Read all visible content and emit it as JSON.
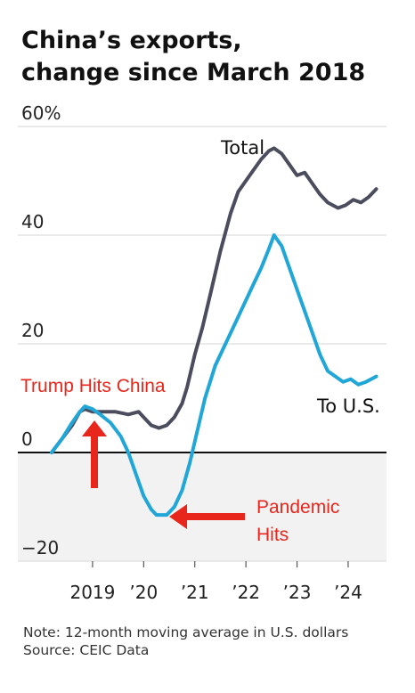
{
  "title": {
    "line1": "China’s exports,",
    "line2": "change since March 2018"
  },
  "chart_data": {
    "type": "line",
    "ylim": [
      -20,
      60
    ],
    "xlim": [
      2018.2,
      2024.75
    ],
    "y_ticks": [
      {
        "value": 60,
        "label": "60%"
      },
      {
        "value": 40,
        "label": "40"
      },
      {
        "value": 20,
        "label": "20"
      },
      {
        "value": 0,
        "label": "0"
      },
      {
        "value": -20,
        "label": "−20"
      }
    ],
    "x_ticks": [
      {
        "value": 2019,
        "label": "2019"
      },
      {
        "value": 2020,
        "label": "’20"
      },
      {
        "value": 2021,
        "label": "’21"
      },
      {
        "value": 2022,
        "label": "’22"
      },
      {
        "value": 2023,
        "label": "’23"
      },
      {
        "value": 2024,
        "label": "’24"
      }
    ],
    "grid": true,
    "series": [
      {
        "name": "Total",
        "color": "#4b4d5e",
        "points": [
          [
            2018.2,
            0
          ],
          [
            2018.4,
            2.5
          ],
          [
            2018.6,
            5
          ],
          [
            2018.75,
            7.5
          ],
          [
            2018.85,
            8
          ],
          [
            2019.0,
            7.5
          ],
          [
            2019.2,
            7.5
          ],
          [
            2019.45,
            7.5
          ],
          [
            2019.7,
            7
          ],
          [
            2019.9,
            7.5
          ],
          [
            2020.0,
            6.5
          ],
          [
            2020.15,
            5
          ],
          [
            2020.3,
            4.5
          ],
          [
            2020.45,
            5
          ],
          [
            2020.6,
            6.5
          ],
          [
            2020.75,
            9
          ],
          [
            2020.85,
            12
          ],
          [
            2021.0,
            18
          ],
          [
            2021.15,
            23
          ],
          [
            2021.3,
            29
          ],
          [
            2021.5,
            37
          ],
          [
            2021.7,
            44
          ],
          [
            2021.85,
            48
          ],
          [
            2022.0,
            50
          ],
          [
            2022.15,
            52
          ],
          [
            2022.3,
            54
          ],
          [
            2022.45,
            55.5
          ],
          [
            2022.55,
            56
          ],
          [
            2022.7,
            55
          ],
          [
            2022.85,
            53
          ],
          [
            2023.0,
            51
          ],
          [
            2023.15,
            51.5
          ],
          [
            2023.3,
            49.5
          ],
          [
            2023.45,
            47.5
          ],
          [
            2023.6,
            46
          ],
          [
            2023.8,
            45
          ],
          [
            2023.95,
            45.5
          ],
          [
            2024.1,
            46.5
          ],
          [
            2024.25,
            46
          ],
          [
            2024.4,
            47
          ],
          [
            2024.55,
            48.5
          ]
        ]
      },
      {
        "name": "To U.S.",
        "color": "#21a6d8",
        "points": [
          [
            2018.2,
            0
          ],
          [
            2018.4,
            2.5
          ],
          [
            2018.6,
            5.5
          ],
          [
            2018.75,
            7.5
          ],
          [
            2018.85,
            8.5
          ],
          [
            2019.0,
            8
          ],
          [
            2019.15,
            7
          ],
          [
            2019.35,
            5.5
          ],
          [
            2019.55,
            3
          ],
          [
            2019.7,
            0
          ],
          [
            2019.85,
            -4
          ],
          [
            2020.0,
            -8
          ],
          [
            2020.15,
            -10.5
          ],
          [
            2020.25,
            -11.5
          ],
          [
            2020.45,
            -11.5
          ],
          [
            2020.6,
            -10
          ],
          [
            2020.75,
            -7
          ],
          [
            2020.9,
            -2
          ],
          [
            2021.05,
            4
          ],
          [
            2021.2,
            10
          ],
          [
            2021.4,
            16
          ],
          [
            2021.6,
            20
          ],
          [
            2021.8,
            24
          ],
          [
            2022.0,
            28
          ],
          [
            2022.15,
            31
          ],
          [
            2022.3,
            34
          ],
          [
            2022.45,
            37.5
          ],
          [
            2022.55,
            40
          ],
          [
            2022.7,
            38
          ],
          [
            2022.85,
            34
          ],
          [
            2023.0,
            30
          ],
          [
            2023.15,
            26
          ],
          [
            2023.3,
            22
          ],
          [
            2023.45,
            18
          ],
          [
            2023.6,
            15
          ],
          [
            2023.75,
            14
          ],
          [
            2023.9,
            13
          ],
          [
            2024.05,
            13.5
          ],
          [
            2024.2,
            12.5
          ],
          [
            2024.35,
            13
          ],
          [
            2024.55,
            14
          ]
        ]
      }
    ],
    "annotations": [
      {
        "text": "Trump Hits China",
        "target": [
          2018.85,
          8.5
        ],
        "arrow": "up"
      },
      {
        "text": "Pandemic",
        "text2": "Hits",
        "target": [
          2020.45,
          -11.5
        ],
        "arrow": "left"
      }
    ]
  },
  "footnote": {
    "note": "Note: 12-month moving average in U.S. dollars",
    "source": "Source: CEIC Data"
  }
}
